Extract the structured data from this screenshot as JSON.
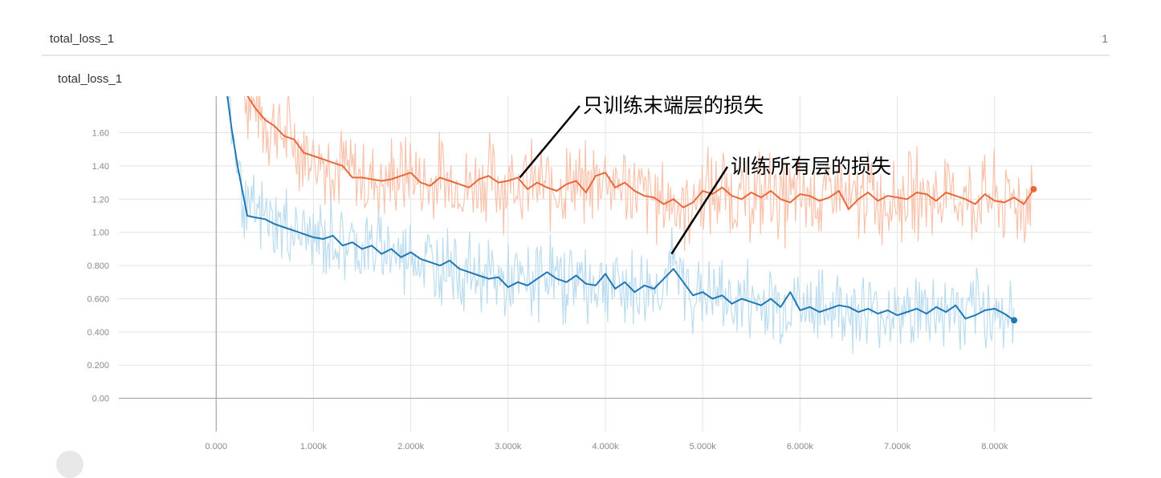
{
  "card": {
    "title": "total_loss_1",
    "count": "1"
  },
  "chart_data": {
    "type": "line",
    "title": "total_loss_1",
    "xlabel": "",
    "ylabel": "",
    "xlim": [
      -1000,
      9000
    ],
    "ylim": [
      -0.2,
      1.82
    ],
    "grid": true,
    "x_ticks": [
      {
        "v": 0,
        "label": "0.000"
      },
      {
        "v": 1000,
        "label": "1.000k"
      },
      {
        "v": 2000,
        "label": "2.000k"
      },
      {
        "v": 3000,
        "label": "3.000k"
      },
      {
        "v": 4000,
        "label": "4.000k"
      },
      {
        "v": 5000,
        "label": "5.000k"
      },
      {
        "v": 6000,
        "label": "6.000k"
      },
      {
        "v": 7000,
        "label": "7.000k"
      },
      {
        "v": 8000,
        "label": "8.000k"
      }
    ],
    "y_ticks": [
      {
        "v": 0.0,
        "label": "0.00"
      },
      {
        "v": 0.2,
        "label": "0.200"
      },
      {
        "v": 0.4,
        "label": "0.400"
      },
      {
        "v": 0.6,
        "label": "0.600"
      },
      {
        "v": 0.8,
        "label": "0.800"
      },
      {
        "v": 1.0,
        "label": "1.00"
      },
      {
        "v": 1.2,
        "label": "1.20"
      },
      {
        "v": 1.4,
        "label": "1.40"
      },
      {
        "v": 1.6,
        "label": "1.60"
      }
    ],
    "series": [
      {
        "color": "#e8683a",
        "raw_color": "#f8c3ad",
        "x": [
          290,
          400,
          500,
          600,
          700,
          800,
          900,
          1000,
          1100,
          1200,
          1300,
          1400,
          1500,
          1600,
          1700,
          1800,
          1900,
          2000,
          2100,
          2200,
          2300,
          2400,
          2500,
          2600,
          2700,
          2800,
          2900,
          3000,
          3100,
          3200,
          3300,
          3400,
          3500,
          3600,
          3700,
          3800,
          3900,
          4000,
          4100,
          4200,
          4300,
          4400,
          4500,
          4600,
          4700,
          4800,
          4900,
          5000,
          5100,
          5200,
          5300,
          5400,
          5500,
          5600,
          5700,
          5800,
          5900,
          6000,
          6100,
          6200,
          6300,
          6400,
          6500,
          6600,
          6700,
          6800,
          6900,
          7000,
          7100,
          7200,
          7300,
          7400,
          7500,
          7600,
          7700,
          7800,
          7900,
          8000,
          8100,
          8200,
          8300,
          8400
        ],
        "y": [
          1.85,
          1.75,
          1.68,
          1.64,
          1.58,
          1.56,
          1.48,
          1.46,
          1.44,
          1.42,
          1.4,
          1.33,
          1.33,
          1.32,
          1.31,
          1.32,
          1.34,
          1.36,
          1.3,
          1.28,
          1.33,
          1.31,
          1.29,
          1.27,
          1.32,
          1.34,
          1.3,
          1.31,
          1.33,
          1.26,
          1.3,
          1.27,
          1.25,
          1.29,
          1.31,
          1.24,
          1.34,
          1.36,
          1.27,
          1.3,
          1.25,
          1.22,
          1.21,
          1.17,
          1.2,
          1.15,
          1.18,
          1.25,
          1.23,
          1.27,
          1.22,
          1.2,
          1.24,
          1.21,
          1.25,
          1.2,
          1.18,
          1.23,
          1.22,
          1.19,
          1.21,
          1.25,
          1.14,
          1.2,
          1.24,
          1.19,
          1.22,
          1.21,
          1.2,
          1.24,
          1.23,
          1.19,
          1.24,
          1.22,
          1.2,
          1.17,
          1.23,
          1.19,
          1.18,
          1.21,
          1.17,
          1.26
        ]
      },
      {
        "color": "#1f77b4",
        "raw_color": "#bcdcef",
        "x": [
          110,
          160,
          220,
          280,
          320,
          400,
          500,
          600,
          700,
          800,
          900,
          1000,
          1100,
          1200,
          1300,
          1400,
          1500,
          1600,
          1700,
          1800,
          1900,
          2000,
          2100,
          2200,
          2300,
          2400,
          2500,
          2600,
          2700,
          2800,
          2900,
          3000,
          3100,
          3200,
          3300,
          3400,
          3500,
          3600,
          3700,
          3800,
          3900,
          4000,
          4100,
          4200,
          4300,
          4400,
          4500,
          4600,
          4700,
          4800,
          4900,
          5000,
          5100,
          5200,
          5300,
          5400,
          5500,
          5600,
          5700,
          5800,
          5900,
          6000,
          6100,
          6200,
          6300,
          6400,
          6500,
          6600,
          6700,
          6800,
          6900,
          7000,
          7100,
          7200,
          7300,
          7400,
          7500,
          7600,
          7700,
          7800,
          7900,
          8000,
          8100,
          8200
        ],
        "y": [
          1.85,
          1.62,
          1.4,
          1.22,
          1.1,
          1.09,
          1.08,
          1.05,
          1.03,
          1.01,
          0.99,
          0.97,
          0.96,
          0.98,
          0.92,
          0.94,
          0.9,
          0.92,
          0.87,
          0.9,
          0.85,
          0.88,
          0.84,
          0.82,
          0.8,
          0.83,
          0.78,
          0.76,
          0.74,
          0.72,
          0.73,
          0.67,
          0.7,
          0.68,
          0.72,
          0.76,
          0.72,
          0.7,
          0.74,
          0.69,
          0.68,
          0.75,
          0.66,
          0.7,
          0.64,
          0.68,
          0.66,
          0.72,
          0.78,
          0.7,
          0.62,
          0.64,
          0.6,
          0.62,
          0.57,
          0.6,
          0.58,
          0.56,
          0.6,
          0.55,
          0.64,
          0.53,
          0.55,
          0.52,
          0.54,
          0.56,
          0.55,
          0.52,
          0.54,
          0.51,
          0.53,
          0.5,
          0.52,
          0.54,
          0.51,
          0.55,
          0.52,
          0.56,
          0.48,
          0.5,
          0.53,
          0.54,
          0.51,
          0.47
        ]
      }
    ],
    "annotations": [
      {
        "text": "只训练末端层的损失",
        "x": 3120,
        "y": 1.33
      },
      {
        "text": "训练所有层的损失",
        "x": 4680,
        "y": 0.87
      }
    ]
  }
}
